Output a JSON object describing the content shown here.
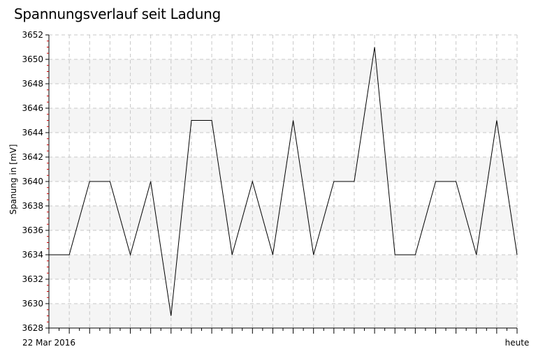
{
  "chart_data": {
    "type": "line",
    "title": "Spannungsverlauf seit Ladung",
    "xlabel": "",
    "ylabel": "Spanung in [mV]",
    "x_tick_labels": [
      "22 Mar 2016",
      "heute"
    ],
    "ylim": [
      3628,
      3652
    ],
    "y_ticks": [
      3628,
      3630,
      3632,
      3634,
      3636,
      3638,
      3640,
      3642,
      3644,
      3646,
      3648,
      3650,
      3652
    ],
    "grid": true,
    "series": [
      {
        "values": [
          3634,
          3634,
          3640,
          3640,
          3634,
          3640,
          3629,
          3645,
          3645,
          3634,
          3640,
          3634,
          3645,
          3634,
          3640,
          3640,
          3651,
          3634,
          3634,
          3640,
          3640,
          3634,
          3645,
          3634
        ]
      }
    ],
    "colors": {
      "line": "#000000",
      "band": "#f5f5f5",
      "grid": "#c8c8c8",
      "tick_marks": "#cc0000"
    }
  }
}
